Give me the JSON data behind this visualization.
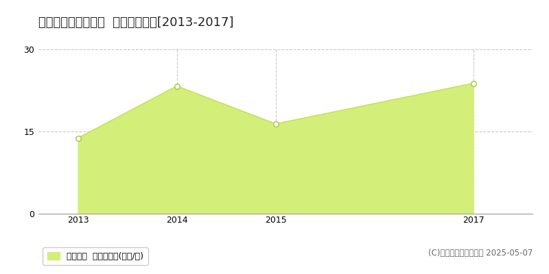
{
  "title": "双葉郡広野町中央台  住宅価格推移[2013-2017]",
  "years": [
    2013,
    2014,
    2015,
    2017
  ],
  "values": [
    13.8,
    23.3,
    16.4,
    23.8
  ],
  "ylim": [
    0,
    30
  ],
  "yticks": [
    0,
    15,
    30
  ],
  "fill_color": "#d4ee7a",
  "line_color": "#c8e060",
  "marker_facecolor": "#ffffff",
  "marker_edgecolor": "#b0cc50",
  "bg_color": "#ffffff",
  "plot_bg_color": "#ffffff",
  "grid_color": "#bbbbbb",
  "legend_label": "住宅価格  平均嵪単価(万円/嵪)",
  "copyright": "(C)土地価格ドットコム 2025-05-07",
  "title_fontsize": 13,
  "axis_fontsize": 9,
  "legend_fontsize": 9,
  "copyright_fontsize": 8.5,
  "xlim_left": 2012.6,
  "xlim_right": 2017.6
}
